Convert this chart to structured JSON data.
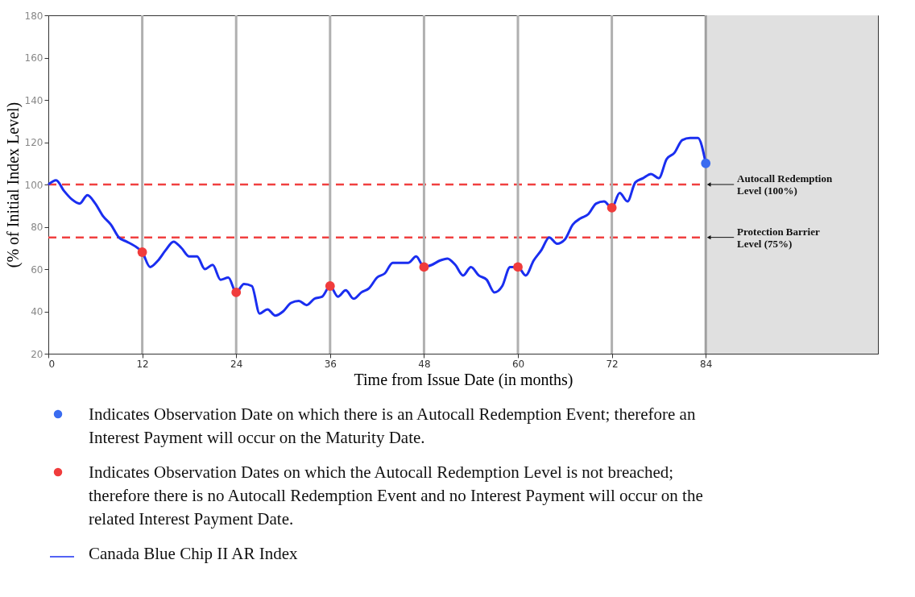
{
  "chart_data": {
    "type": "line",
    "xlabel": "Time from Issue Date (in months)",
    "ylabel": "(% of Initial Index Level)",
    "xlim": [
      0,
      106
    ],
    "ylim": [
      20,
      180
    ],
    "xticks": [
      0,
      12,
      24,
      36,
      48,
      60,
      72,
      84
    ],
    "yticks": [
      20,
      40,
      60,
      80,
      100,
      120,
      140,
      160,
      180
    ],
    "grid": false,
    "legend": "bottom",
    "series": [
      {
        "name": "Indicates Observation Date on which there is an Autocall Redemption Event; therefore an Interest Payment will occur on the Maturity Date.",
        "type": "scatter",
        "color": "#3a6cf0",
        "x": [
          84
        ],
        "values": [
          110
        ]
      },
      {
        "name": "Indicates Observation Dates on which the Autocall Redemption Level is not breached; therefore there is no Autocall Redemption Event and no Interest Payment will occur on the related Interest Payment Date.",
        "type": "scatter",
        "color": "#f03c3c",
        "x": [
          12,
          24,
          36,
          48,
          60,
          72
        ],
        "values": [
          68,
          49,
          52,
          61,
          61,
          89
        ]
      },
      {
        "name": "Canada Blue Chip II AR Index",
        "color": "#1a2ef0",
        "x": [
          0,
          1,
          2,
          3,
          4,
          5,
          6,
          7,
          8,
          9,
          10,
          11,
          12,
          13,
          14,
          15,
          16,
          17,
          18,
          19,
          20,
          21,
          22,
          23,
          24,
          25,
          26,
          27,
          28,
          29,
          30,
          31,
          32,
          33,
          34,
          35,
          36,
          37,
          38,
          39,
          40,
          41,
          42,
          43,
          44,
          45,
          46,
          47,
          48,
          49,
          50,
          51,
          52,
          53,
          54,
          55,
          56,
          57,
          58,
          59,
          60,
          61,
          62,
          63,
          64,
          65,
          66,
          67,
          68,
          69,
          70,
          71,
          72,
          73,
          74,
          75,
          76,
          77,
          78,
          79,
          80,
          81,
          82,
          83,
          84
        ],
        "values": [
          100,
          102,
          97,
          93,
          91,
          95,
          91,
          85,
          81,
          75,
          73,
          71,
          68,
          61,
          64,
          69,
          73,
          70,
          66,
          66,
          60,
          62,
          55,
          56,
          49,
          53,
          52,
          39,
          41,
          38,
          40,
          44,
          45,
          43,
          46,
          47,
          52,
          47,
          50,
          46,
          49,
          51,
          56,
          58,
          63,
          63,
          63,
          66,
          61,
          62,
          64,
          65,
          62,
          57,
          61,
          57,
          55,
          49,
          52,
          61,
          61,
          57,
          64,
          69,
          75,
          72,
          74,
          81,
          84,
          86,
          91,
          92,
          89,
          96,
          92,
          101,
          103,
          105,
          103,
          112,
          115,
          121,
          122,
          122,
          110
        ]
      }
    ],
    "ref_lines": [
      {
        "axis": "y",
        "value": 100,
        "label": "Autocall Redemption Level (100%)",
        "color": "#f04040",
        "line_style": "dashed"
      },
      {
        "axis": "y",
        "value": 75,
        "label": "Protection Barrier Level (75%)",
        "color": "#f04040",
        "line_style": "dashed"
      },
      {
        "axis": "x",
        "value": 12,
        "color": "#b0b0b0",
        "line_style": "solid"
      },
      {
        "axis": "x",
        "value": 24,
        "color": "#b0b0b0",
        "line_style": "solid"
      },
      {
        "axis": "x",
        "value": 36,
        "color": "#b0b0b0",
        "line_style": "solid"
      },
      {
        "axis": "x",
        "value": 48,
        "color": "#b0b0b0",
        "line_style": "solid"
      },
      {
        "axis": "x",
        "value": 60,
        "color": "#b0b0b0",
        "line_style": "solid"
      },
      {
        "axis": "x",
        "value": 72,
        "color": "#b0b0b0",
        "line_style": "solid"
      },
      {
        "axis": "x",
        "value": 84,
        "color": "#a0a0a0",
        "line_style": "solid"
      }
    ],
    "bands": [
      {
        "axis": "x",
        "from": 84,
        "to": 106,
        "color": "#e0e0e0"
      }
    ]
  }
}
